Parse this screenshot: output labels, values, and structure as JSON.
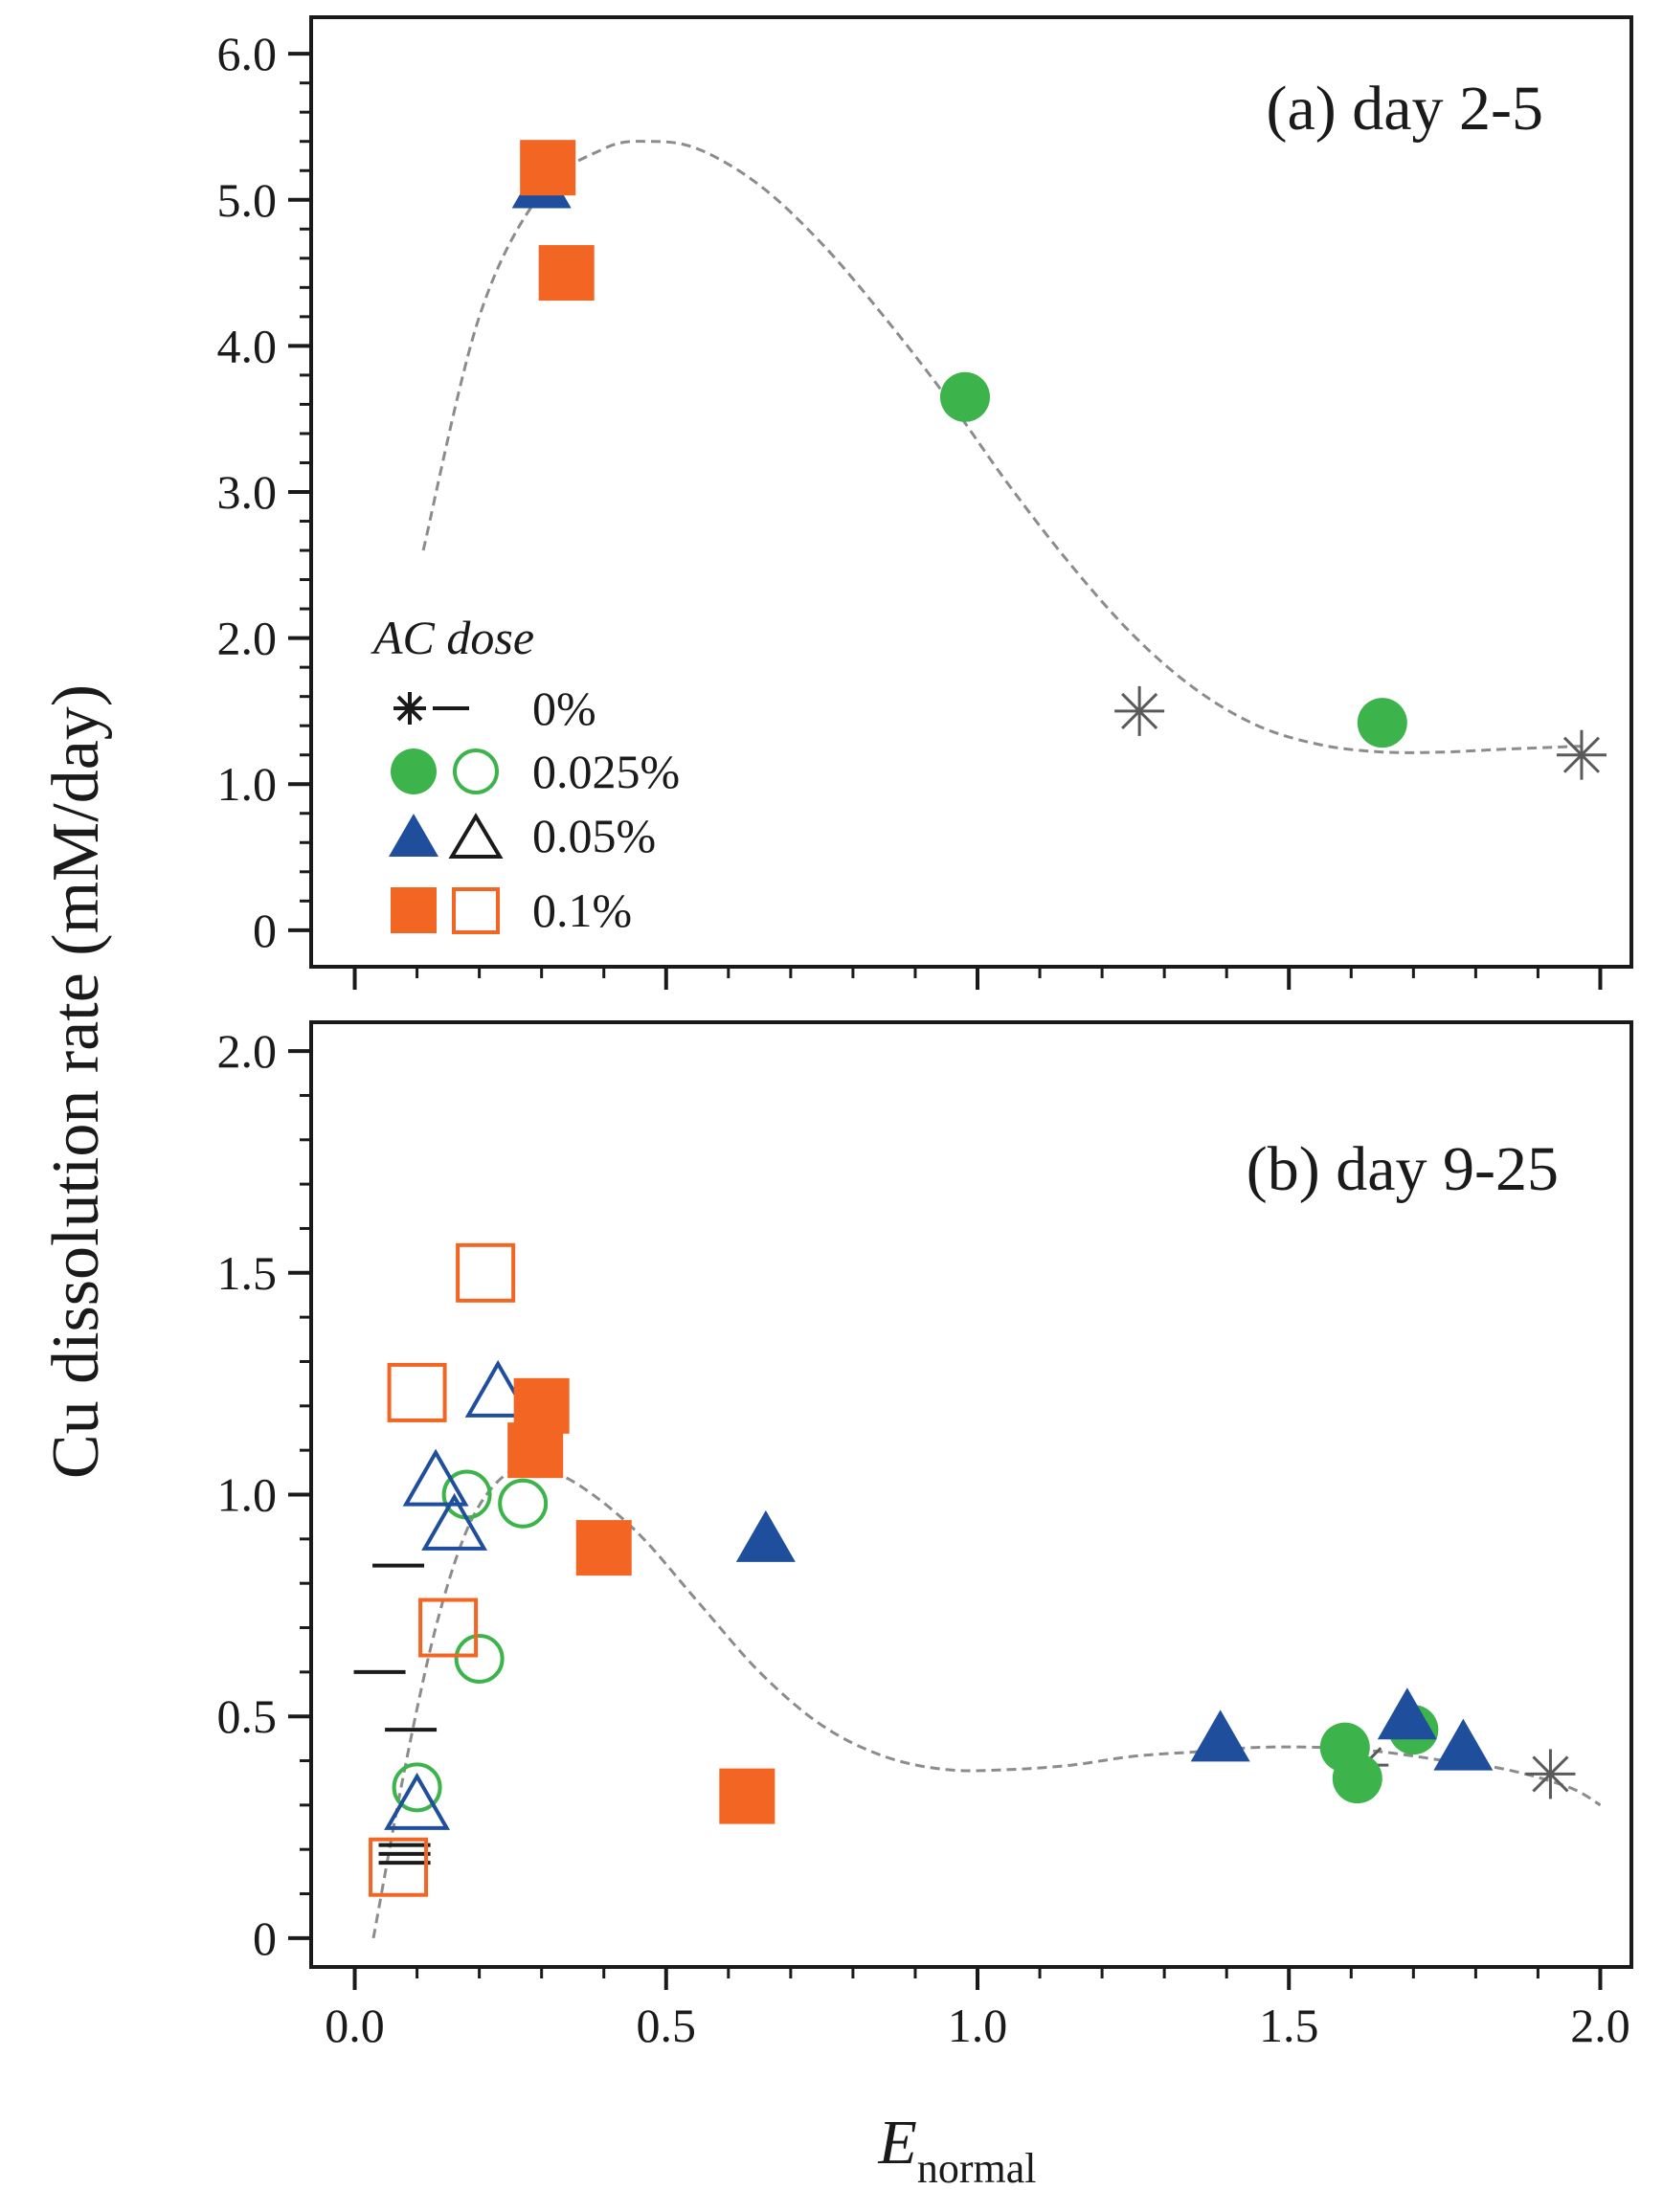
{
  "figure": {
    "ylabel": "Cu dissolution rate (mM/day)",
    "xlabel_main": "E",
    "xlabel_sub": "normal"
  },
  "legend": {
    "title": "AC dose",
    "entries": [
      {
        "label": "0%",
        "filled": "star",
        "open": "dash",
        "color": "#000000"
      },
      {
        "label": "0.025%",
        "filled": "circle",
        "open": "circle-open",
        "color": "#3cb44b"
      },
      {
        "label": "0.05%",
        "filled": "triangle",
        "open": "triangle-open",
        "color": "#1f4e9c"
      },
      {
        "label": "0.1%",
        "filled": "square",
        "open": "square-open",
        "color": "#f26522"
      }
    ]
  },
  "colors": {
    "green": "#3cb44b",
    "blue": "#1f4e9c",
    "orange": "#f26522",
    "gray": "#5a5a5a",
    "black": "#1a1a1a",
    "fit": "#8c8c8c"
  },
  "chart_data": [
    {
      "type": "scatter",
      "panel": "a",
      "title": "(a) day 2-5",
      "xlabel": "E normal",
      "ylabel": "Cu dissolution rate (mM/day)",
      "xlim": [
        -0.07,
        2.05
      ],
      "ylim": [
        -0.25,
        6.25
      ],
      "yticks": [
        0,
        1.0,
        2.0,
        3.0,
        4.0,
        5.0,
        6.0
      ],
      "ytick_labels": [
        "0",
        "1.0",
        "2.0",
        "3.0",
        "4.0",
        "5.0",
        "6.0"
      ],
      "xticks": [
        0.0,
        0.5,
        1.0,
        1.5,
        2.0
      ],
      "xtick_labels": [],
      "series": [
        {
          "name": "0%",
          "marker": "star",
          "color": "#5a5a5a",
          "points": [
            [
              1.26,
              1.5
            ],
            [
              1.97,
              1.2
            ]
          ]
        },
        {
          "name": "0.025%",
          "marker": "circle",
          "color": "#3cb44b",
          "points": [
            [
              0.98,
              3.65
            ],
            [
              1.65,
              1.42
            ]
          ]
        },
        {
          "name": "0.05%",
          "marker": "triangle",
          "color": "#1f4e9c",
          "points": [
            [
              0.3,
              5.1
            ]
          ]
        },
        {
          "name": "0.1%",
          "marker": "square",
          "color": "#f26522",
          "points": [
            [
              0.31,
              5.22
            ],
            [
              0.34,
              4.5
            ]
          ]
        }
      ],
      "fit": {
        "style": "dashed",
        "x": [
          0.11,
          0.2,
          0.3,
          0.4,
          0.47,
          0.55,
          0.65,
          0.75,
          0.85,
          0.95,
          1.05,
          1.15,
          1.25,
          1.35,
          1.45,
          1.55,
          1.65,
          1.75,
          1.85,
          1.97
        ],
        "y": [
          2.6,
          4.2,
          5.05,
          5.35,
          5.4,
          5.35,
          5.1,
          4.7,
          4.2,
          3.65,
          3.05,
          2.5,
          2.02,
          1.65,
          1.4,
          1.27,
          1.22,
          1.22,
          1.24,
          1.26
        ]
      }
    },
    {
      "type": "scatter",
      "panel": "b",
      "title": "(b) day 9-25",
      "xlabel": "E normal",
      "ylabel": "Cu dissolution rate (mM/day)",
      "xlim": [
        -0.07,
        2.05
      ],
      "ylim": [
        -0.065,
        2.065
      ],
      "yticks": [
        0,
        0.5,
        1.0,
        1.5,
        2.0
      ],
      "ytick_labels": [
        "0",
        "0.5",
        "1.0",
        "1.5",
        "2.0"
      ],
      "xticks": [
        0.0,
        0.5,
        1.0,
        1.5,
        2.0
      ],
      "xtick_labels": [
        "0.0",
        "0.5",
        "1.0",
        "1.5",
        "2.0"
      ],
      "series": [
        {
          "name": "0% (filled)",
          "marker": "star",
          "color": "#5a5a5a",
          "points": [
            [
              1.62,
              0.39
            ],
            [
              1.92,
              0.37
            ]
          ]
        },
        {
          "name": "0% (open)",
          "marker": "dash",
          "color": "#1a1a1a",
          "points": [
            [
              0.07,
              0.84
            ],
            [
              0.04,
              0.6
            ],
            [
              0.09,
              0.47
            ],
            [
              0.08,
              0.21
            ],
            [
              0.08,
              0.19
            ],
            [
              0.08,
              0.17
            ]
          ]
        },
        {
          "name": "0.025% (filled)",
          "marker": "circle",
          "color": "#3cb44b",
          "points": [
            [
              1.59,
              0.43
            ],
            [
              1.61,
              0.36
            ],
            [
              1.7,
              0.47
            ]
          ]
        },
        {
          "name": "0.025% (open)",
          "marker": "circle-open",
          "color": "#3cb44b",
          "points": [
            [
              0.18,
              1.0
            ],
            [
              0.27,
              0.98
            ],
            [
              0.2,
              0.63
            ],
            [
              0.1,
              0.34
            ]
          ]
        },
        {
          "name": "0.05% (filled)",
          "marker": "triangle",
          "color": "#1f4e9c",
          "points": [
            [
              0.66,
              0.9
            ],
            [
              1.39,
              0.45
            ],
            [
              1.69,
              0.5
            ],
            [
              1.78,
              0.43
            ]
          ]
        },
        {
          "name": "0.05% (open)",
          "marker": "triangle-open",
          "color": "#1f4e9c",
          "points": [
            [
              0.23,
              1.23
            ],
            [
              0.13,
              1.03
            ],
            [
              0.16,
              0.93
            ],
            [
              0.1,
              0.3
            ]
          ]
        },
        {
          "name": "0.1% (filled)",
          "marker": "square",
          "color": "#f26522",
          "points": [
            [
              0.3,
              1.2
            ],
            [
              0.29,
              1.1
            ],
            [
              0.4,
              0.88
            ],
            [
              0.63,
              0.32
            ]
          ]
        },
        {
          "name": "0.1% (open)",
          "marker": "square-open",
          "color": "#f26522",
          "points": [
            [
              0.21,
              1.5
            ],
            [
              0.1,
              1.23
            ],
            [
              0.15,
              0.7
            ],
            [
              0.07,
              0.16
            ]
          ]
        }
      ],
      "fit": {
        "style": "dashed",
        "x": [
          0.03,
          0.08,
          0.13,
          0.18,
          0.23,
          0.28,
          0.35,
          0.45,
          0.55,
          0.65,
          0.75,
          0.85,
          0.95,
          1.05,
          1.15,
          1.25,
          1.35,
          1.45,
          1.55,
          1.65,
          1.75,
          1.85,
          1.95,
          2.0
        ],
        "y": [
          0.0,
          0.38,
          0.7,
          0.92,
          1.03,
          1.06,
          1.03,
          0.92,
          0.76,
          0.6,
          0.48,
          0.41,
          0.38,
          0.38,
          0.39,
          0.41,
          0.42,
          0.43,
          0.43,
          0.42,
          0.4,
          0.38,
          0.34,
          0.3
        ]
      }
    }
  ]
}
